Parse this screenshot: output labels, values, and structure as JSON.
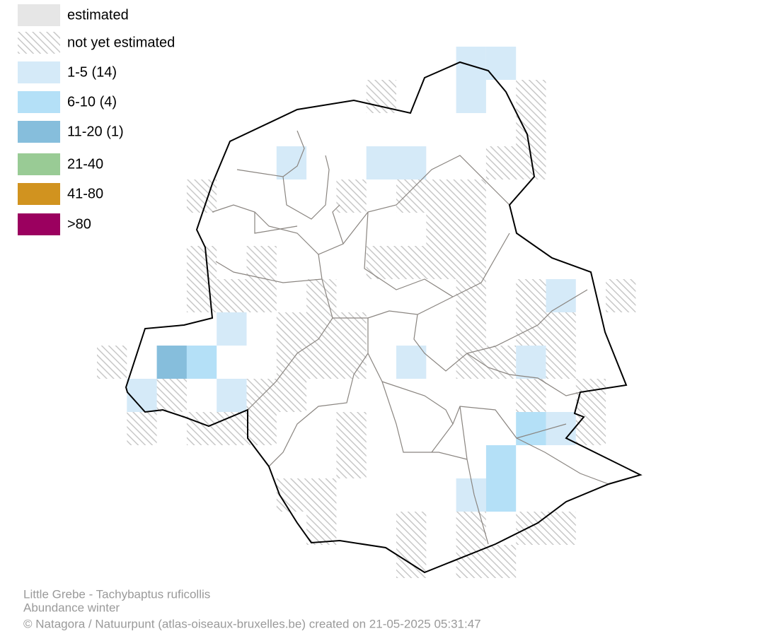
{
  "legend": [
    {
      "label": "estimated",
      "color": "#e6e6e6"
    },
    {
      "label": "not yet estimated",
      "color": "#cfcfcf",
      "hatched": true
    },
    {
      "label": "1-5 (14)",
      "color": "#d5eaf8"
    },
    {
      "label": "6-10 (4)",
      "color": "#b4e0f7"
    },
    {
      "label": "11-20 (1)",
      "color": "#86bedc"
    },
    {
      "label": "21-40",
      "color": "#99cb95"
    },
    {
      "label": "41-80",
      "color": "#d1931f"
    },
    {
      "label": ">80",
      "color": "#9b005f"
    }
  ],
  "caption": [
    "Little Grebe - Tachybaptus ruficollis",
    "Abundance winter",
    "© Natagora / Natuurpunt (atlas-oiseaux-bruxelles.be) created on 21-05-2025 05:31:47"
  ]
}
